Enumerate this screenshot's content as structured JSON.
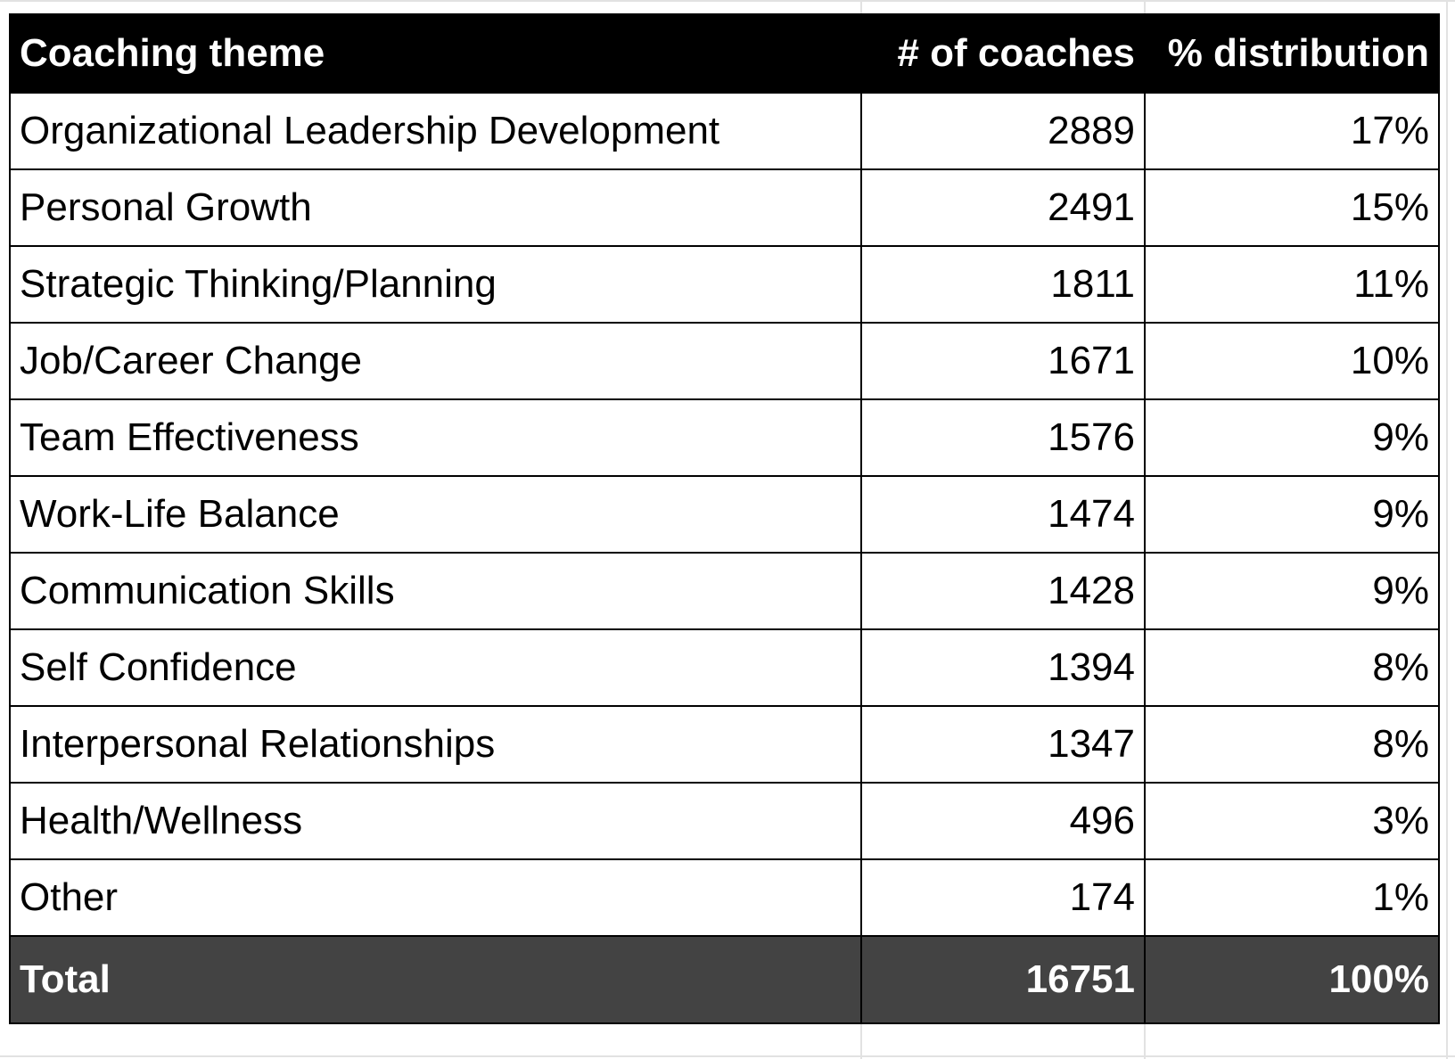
{
  "table": {
    "header": [
      "Coaching theme",
      "# of coaches",
      "% distribution"
    ],
    "rows": [
      [
        "Organizational Leadership Development",
        2889,
        "17%"
      ],
      [
        "Personal Growth",
        2491,
        "15%"
      ],
      [
        "Strategic Thinking/Planning",
        1811,
        "11%"
      ],
      [
        "Job/Career Change",
        1671,
        "10%"
      ],
      [
        "Team Effectiveness",
        1576,
        "9%"
      ],
      [
        "Work-Life Balance",
        1474,
        "9%"
      ],
      [
        "Communication Skills",
        1428,
        "9%"
      ],
      [
        "Self Confidence",
        1394,
        "8%"
      ],
      [
        "Interpersonal Relationships",
        1347,
        "8%"
      ],
      [
        "Health/Wellness",
        496,
        "3%"
      ],
      [
        "Other",
        174,
        "1%"
      ]
    ],
    "total": [
      "Total",
      16751,
      "100%"
    ]
  }
}
